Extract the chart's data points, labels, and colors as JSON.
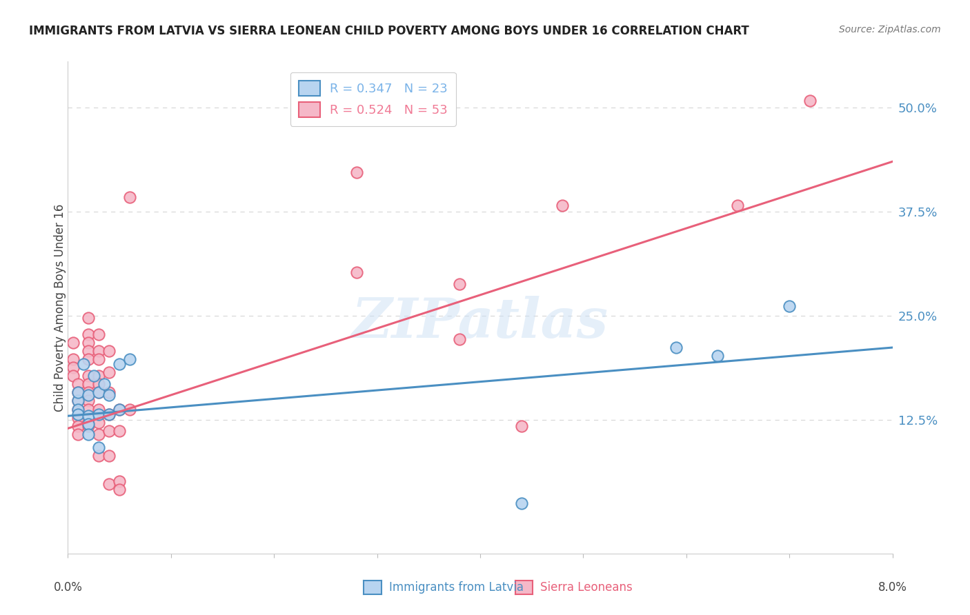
{
  "title": "IMMIGRANTS FROM LATVIA VS SIERRA LEONEAN CHILD POVERTY AMONG BOYS UNDER 16 CORRELATION CHART",
  "source": "Source: ZipAtlas.com",
  "ylabel": "Child Poverty Among Boys Under 16",
  "ytick_labels": [
    "12.5%",
    "25.0%",
    "37.5%",
    "50.0%"
  ],
  "ytick_values": [
    0.125,
    0.25,
    0.375,
    0.5
  ],
  "xmin": 0.0,
  "xmax": 0.08,
  "ymin": -0.035,
  "ymax": 0.555,
  "legend_entries": [
    {
      "label": "R = 0.347   N = 23",
      "color": "#7ab3e8"
    },
    {
      "label": "R = 0.524   N = 53",
      "color": "#f07a95"
    }
  ],
  "blue_scatter": [
    [
      0.001,
      0.148
    ],
    [
      0.001,
      0.138
    ],
    [
      0.001,
      0.132
    ],
    [
      0.001,
      0.158
    ],
    [
      0.0015,
      0.192
    ],
    [
      0.002,
      0.155
    ],
    [
      0.002,
      0.13
    ],
    [
      0.002,
      0.12
    ],
    [
      0.002,
      0.108
    ],
    [
      0.0025,
      0.178
    ],
    [
      0.003,
      0.158
    ],
    [
      0.003,
      0.132
    ],
    [
      0.003,
      0.092
    ],
    [
      0.0035,
      0.168
    ],
    [
      0.004,
      0.155
    ],
    [
      0.004,
      0.132
    ],
    [
      0.005,
      0.192
    ],
    [
      0.005,
      0.138
    ],
    [
      0.006,
      0.198
    ],
    [
      0.044,
      0.025
    ],
    [
      0.059,
      0.212
    ],
    [
      0.063,
      0.202
    ],
    [
      0.07,
      0.262
    ]
  ],
  "pink_scatter": [
    [
      0.0005,
      0.218
    ],
    [
      0.0005,
      0.198
    ],
    [
      0.0005,
      0.188
    ],
    [
      0.0005,
      0.178
    ],
    [
      0.001,
      0.168
    ],
    [
      0.001,
      0.158
    ],
    [
      0.001,
      0.148
    ],
    [
      0.001,
      0.138
    ],
    [
      0.001,
      0.128
    ],
    [
      0.001,
      0.118
    ],
    [
      0.001,
      0.108
    ],
    [
      0.002,
      0.248
    ],
    [
      0.002,
      0.228
    ],
    [
      0.002,
      0.218
    ],
    [
      0.002,
      0.208
    ],
    [
      0.002,
      0.198
    ],
    [
      0.002,
      0.178
    ],
    [
      0.002,
      0.168
    ],
    [
      0.002,
      0.158
    ],
    [
      0.002,
      0.148
    ],
    [
      0.002,
      0.138
    ],
    [
      0.002,
      0.118
    ],
    [
      0.003,
      0.228
    ],
    [
      0.003,
      0.208
    ],
    [
      0.003,
      0.198
    ],
    [
      0.003,
      0.178
    ],
    [
      0.003,
      0.168
    ],
    [
      0.003,
      0.158
    ],
    [
      0.003,
      0.138
    ],
    [
      0.003,
      0.122
    ],
    [
      0.003,
      0.108
    ],
    [
      0.003,
      0.082
    ],
    [
      0.004,
      0.208
    ],
    [
      0.004,
      0.182
    ],
    [
      0.004,
      0.158
    ],
    [
      0.004,
      0.132
    ],
    [
      0.004,
      0.112
    ],
    [
      0.004,
      0.082
    ],
    [
      0.004,
      0.048
    ],
    [
      0.005,
      0.138
    ],
    [
      0.005,
      0.112
    ],
    [
      0.005,
      0.052
    ],
    [
      0.005,
      0.042
    ],
    [
      0.006,
      0.392
    ],
    [
      0.006,
      0.138
    ],
    [
      0.028,
      0.422
    ],
    [
      0.028,
      0.302
    ],
    [
      0.038,
      0.288
    ],
    [
      0.038,
      0.222
    ],
    [
      0.044,
      0.118
    ],
    [
      0.048,
      0.382
    ],
    [
      0.065,
      0.382
    ],
    [
      0.072,
      0.508
    ]
  ],
  "blue_line_x": [
    0.0,
    0.08
  ],
  "blue_line_y": [
    0.13,
    0.212
  ],
  "pink_line_x": [
    0.0,
    0.08
  ],
  "pink_line_y": [
    0.115,
    0.435
  ],
  "blue_color": "#4a8fc2",
  "pink_color": "#e8607a",
  "blue_fill": "#b8d4f0",
  "pink_fill": "#f5b8c8",
  "grid_color": "#d8d8d8",
  "background_color": "#ffffff",
  "title_fontsize": 12,
  "scatter_size": 140,
  "watermark": "ZIPatlas"
}
